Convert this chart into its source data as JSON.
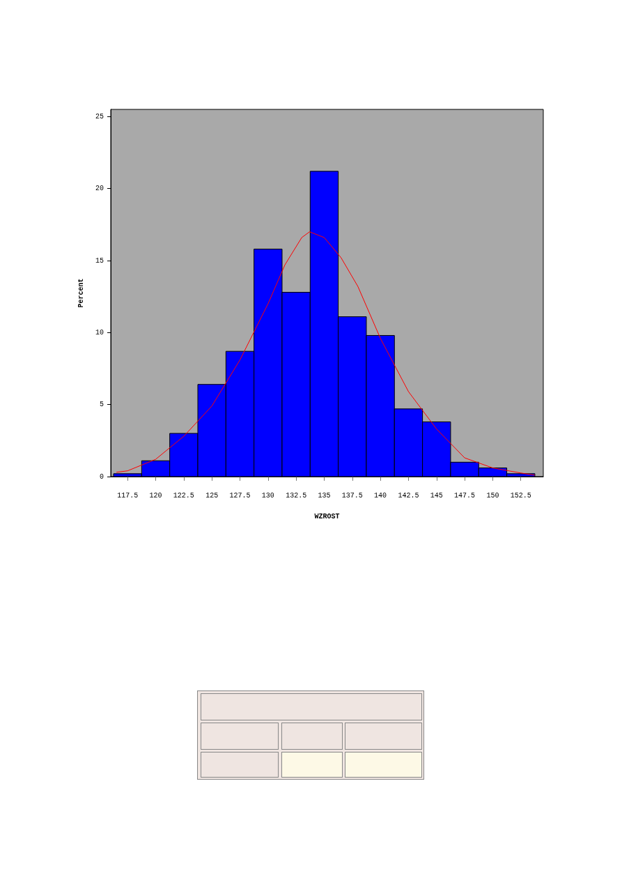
{
  "chart_data": {
    "type": "histogram",
    "xlabel": "WZROST",
    "ylabel": "Percent",
    "bins": [
      116.25,
      118.75,
      121.25,
      123.75,
      126.25,
      128.75,
      131.25,
      133.75,
      136.25,
      138.75,
      141.25,
      143.75,
      146.25,
      148.75,
      151.25,
      153.75
    ],
    "values": [
      0.2,
      1.1,
      3.0,
      6.4,
      8.7,
      15.8,
      12.8,
      21.2,
      11.1,
      9.8,
      4.7,
      3.8,
      1.0,
      0.6,
      0.2
    ],
    "color": "#0000ff",
    "series": [
      {
        "type": "line",
        "color": "#ff0000",
        "x": [
          116.5,
          117.5,
          120,
          122.5,
          125,
          127.5,
          130,
          131.5,
          133,
          133.7,
          135,
          136.5,
          138,
          140,
          142.5,
          145,
          147.5,
          150,
          152.5,
          153.75
        ],
        "values": [
          0.3,
          0.4,
          1.2,
          2.8,
          4.9,
          8.1,
          12.0,
          14.7,
          16.6,
          17.0,
          16.6,
          15.2,
          13.2,
          9.6,
          5.9,
          3.3,
          1.3,
          0.6,
          0.25,
          0.1
        ]
      }
    ],
    "xlim": [
      116,
      154.5
    ],
    "xticks": [
      117.5,
      120,
      122.5,
      125,
      127.5,
      130,
      132.5,
      135,
      137.5,
      140,
      142.5,
      145,
      147.5,
      150,
      152.5
    ],
    "ylim": [
      0,
      25.5
    ],
    "yticks": [
      0,
      5,
      10,
      15,
      20,
      25
    ]
  }
}
